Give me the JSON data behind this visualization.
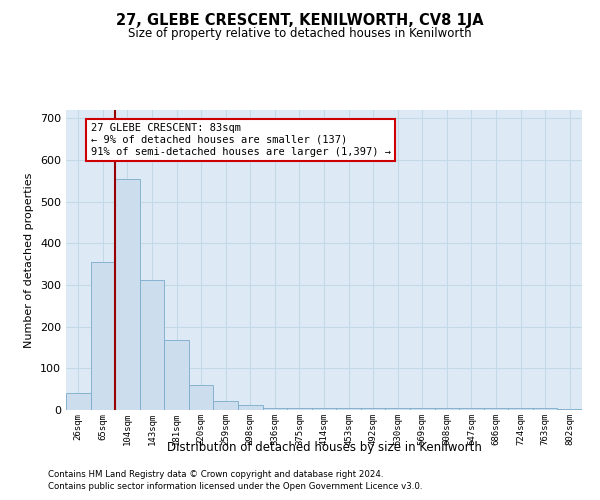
{
  "title": "27, GLEBE CRESCENT, KENILWORTH, CV8 1JA",
  "subtitle": "Size of property relative to detached houses in Kenilworth",
  "xlabel": "Distribution of detached houses by size in Kenilworth",
  "ylabel": "Number of detached properties",
  "bar_labels": [
    "26sqm",
    "65sqm",
    "104sqm",
    "143sqm",
    "181sqm",
    "220sqm",
    "259sqm",
    "298sqm",
    "336sqm",
    "375sqm",
    "414sqm",
    "453sqm",
    "492sqm",
    "530sqm",
    "569sqm",
    "608sqm",
    "647sqm",
    "686sqm",
    "724sqm",
    "763sqm",
    "802sqm"
  ],
  "bar_heights": [
    42,
    355,
    555,
    312,
    168,
    60,
    22,
    12,
    5,
    5,
    5,
    5,
    5,
    5,
    5,
    5,
    5,
    5,
    5,
    5,
    3
  ],
  "bar_color": "#ccdded",
  "bar_edge_color": "#7aaccc",
  "grid_color": "#c5d8e8",
  "background_color": "#ddeaf5",
  "vline_color": "#990000",
  "vline_x": 1.5,
  "annotation_text": "27 GLEBE CRESCENT: 83sqm\n← 9% of detached houses are smaller (137)\n91% of semi-detached houses are larger (1,397) →",
  "annotation_box_facecolor": "#ffffff",
  "annotation_box_edgecolor": "#cc0000",
  "footer_line1": "Contains HM Land Registry data © Crown copyright and database right 2024.",
  "footer_line2": "Contains public sector information licensed under the Open Government Licence v3.0.",
  "ylim": [
    0,
    720
  ],
  "yticks": [
    0,
    100,
    200,
    300,
    400,
    500,
    600,
    700
  ]
}
